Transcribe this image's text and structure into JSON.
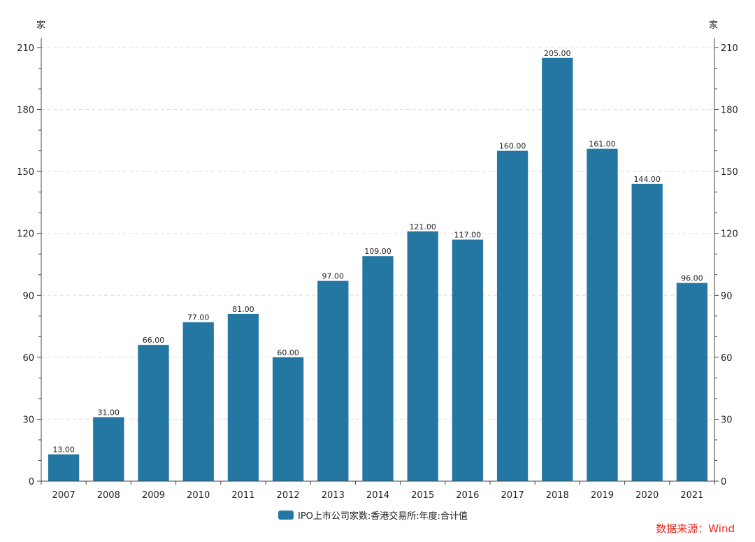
{
  "chart_data": {
    "type": "bar",
    "categories": [
      "2007",
      "2008",
      "2009",
      "2010",
      "2011",
      "2012",
      "2013",
      "2014",
      "2015",
      "2016",
      "2017",
      "2018",
      "2019",
      "2020",
      "2021"
    ],
    "series": [
      {
        "name": "IPO上市公司家数:香港交易所:年度:合计值",
        "values": [
          13,
          31,
          66,
          77,
          81,
          60,
          97,
          109,
          121,
          117,
          160,
          205,
          161,
          144,
          96
        ],
        "labels": [
          "13.00",
          "31.00",
          "66.00",
          "77.00",
          "81.00",
          "60.00",
          "97.00",
          "109.00",
          "121.00",
          "117.00",
          "160.00",
          "205.00",
          "161.00",
          "144.00",
          "96.00"
        ],
        "color": "#2477a3"
      }
    ],
    "ylim": [
      0,
      210
    ],
    "yticks": [
      0,
      30,
      60,
      90,
      120,
      150,
      180,
      210
    ],
    "ytick_labels": [
      "0",
      "30",
      "60",
      "90",
      "120",
      "150",
      "180",
      "210"
    ],
    "ylabel_left": "家",
    "ylabel_right": "家",
    "grid": true,
    "legend_position": "bottom-center"
  },
  "source": "数据来源：Wind",
  "colors": {
    "bar": "#2477a3",
    "source": "#e0281c",
    "axis": "#444444",
    "grid": "#dddddd"
  }
}
